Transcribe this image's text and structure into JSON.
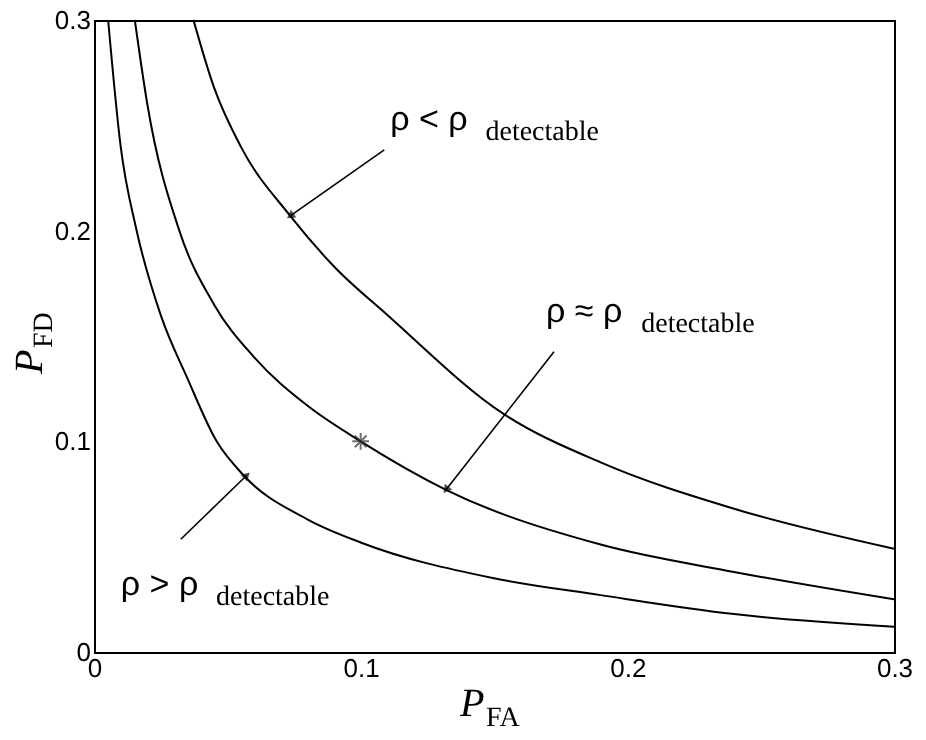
{
  "chart_data": {
    "type": "line",
    "xlabel": "P$_{FA}$",
    "ylabel": "P$_{FD}$",
    "xlim": [
      0,
      0.3
    ],
    "ylim": [
      0,
      0.3
    ],
    "xticks": [
      0,
      0.1,
      0.2,
      0.3
    ],
    "yticks": [
      0,
      0.1,
      0.2,
      0.3
    ],
    "grid": false,
    "line_style": "solid",
    "marker": "none",
    "series": [
      {
        "color": "#000000",
        "x": [
          0.0373,
          0.045,
          0.055,
          0.0736,
          0.09,
          0.11,
          0.1536,
          0.19,
          0.24,
          0.3
        ],
        "values": [
          0.3,
          0.268,
          0.24,
          0.207,
          0.183,
          0.16,
          0.113,
          0.09,
          0.068,
          0.049
        ]
      },
      {
        "color": "#000000",
        "x": [
          0.0153,
          0.02,
          0.032,
          0.045,
          0.06,
          0.08,
          0.1,
          0.132,
          0.19,
          0.24,
          0.3
        ],
        "values": [
          0.3,
          0.26,
          0.2,
          0.165,
          0.14,
          0.117,
          0.1,
          0.077,
          0.051,
          0.038,
          0.025
        ]
      },
      {
        "color": "#000000",
        "x": [
          0.0053,
          0.01,
          0.016,
          0.025,
          0.035,
          0.046,
          0.056,
          0.08,
          0.1,
          0.15,
          0.19,
          0.24,
          0.3
        ],
        "values": [
          0.3,
          0.24,
          0.2,
          0.16,
          0.13,
          0.1,
          0.084,
          0.063,
          0.052,
          0.035,
          0.027,
          0.018,
          0.012
        ]
      },
      {
        "type": "scatter",
        "marker": "cross",
        "color": "#333333",
        "x": [
          0.1
        ],
        "values": [
          0.1
        ]
      }
    ],
    "annotations": [
      {
        "text": "ρ < ρ$_{detectable}$",
        "x": 0.0736,
        "y": 0.207
      },
      {
        "text": "ρ ≈ ρ$_{detectable}$",
        "x": 0.132,
        "y": 0.077
      },
      {
        "text": "ρ > ρ$_{detectable}$",
        "x": 0.0573,
        "y": 0.0839
      }
    ]
  }
}
